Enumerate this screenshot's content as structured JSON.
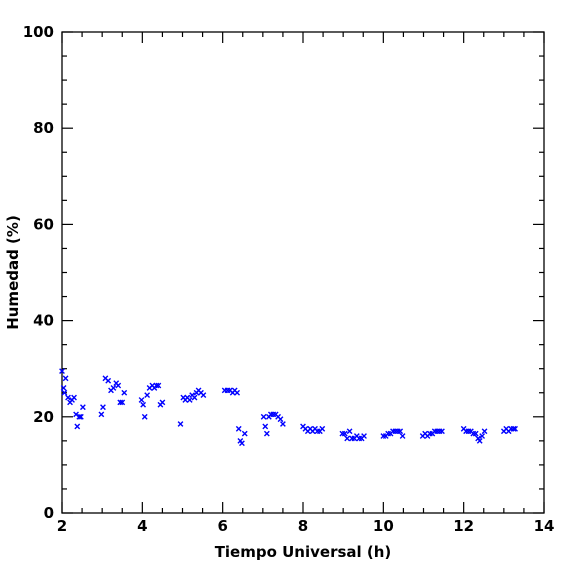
{
  "chart_data": {
    "type": "scatter",
    "title": "",
    "xlabel": "Tiempo Universal (h)",
    "ylabel": "Humedad (%)",
    "xlim": [
      2,
      14
    ],
    "ylim": [
      0,
      100
    ],
    "x_ticks": [
      2,
      4,
      6,
      8,
      10,
      12,
      14
    ],
    "y_ticks": [
      0,
      20,
      40,
      60,
      80,
      100
    ],
    "marker": "x",
    "marker_color": "#0000ff",
    "grid": false,
    "legend": "none",
    "series": [
      {
        "points": [
          [
            2.0,
            29.5
          ],
          [
            2.04,
            26.0
          ],
          [
            2.06,
            25.0
          ],
          [
            2.09,
            28.0
          ],
          [
            2.15,
            24.0
          ],
          [
            2.2,
            23.0
          ],
          [
            2.25,
            23.5
          ],
          [
            2.3,
            24.0
          ],
          [
            2.35,
            20.5
          ],
          [
            2.38,
            18.0
          ],
          [
            2.43,
            20.0
          ],
          [
            2.47,
            20.0
          ],
          [
            2.52,
            22.0
          ],
          [
            2.98,
            20.5
          ],
          [
            3.02,
            22.0
          ],
          [
            3.08,
            28.0
          ],
          [
            3.15,
            27.5
          ],
          [
            3.22,
            25.5
          ],
          [
            3.28,
            26.0
          ],
          [
            3.35,
            27.0
          ],
          [
            3.4,
            26.5
          ],
          [
            3.45,
            23.0
          ],
          [
            3.5,
            23.0
          ],
          [
            3.55,
            25.0
          ],
          [
            3.98,
            23.5
          ],
          [
            4.02,
            22.5
          ],
          [
            4.06,
            20.0
          ],
          [
            4.12,
            24.5
          ],
          [
            4.18,
            26.0
          ],
          [
            4.25,
            26.5
          ],
          [
            4.3,
            26.0
          ],
          [
            4.35,
            26.5
          ],
          [
            4.4,
            26.5
          ],
          [
            4.45,
            22.5
          ],
          [
            4.5,
            23.0
          ],
          [
            4.95,
            18.5
          ],
          [
            5.02,
            24.0
          ],
          [
            5.07,
            23.5
          ],
          [
            5.12,
            24.0
          ],
          [
            5.18,
            23.5
          ],
          [
            5.24,
            24.5
          ],
          [
            5.3,
            24.0
          ],
          [
            5.35,
            25.0
          ],
          [
            5.4,
            25.5
          ],
          [
            5.46,
            25.0
          ],
          [
            5.52,
            24.5
          ],
          [
            6.05,
            25.5
          ],
          [
            6.12,
            25.5
          ],
          [
            6.18,
            25.5
          ],
          [
            6.25,
            25.0
          ],
          [
            6.3,
            25.5
          ],
          [
            6.36,
            25.0
          ],
          [
            6.4,
            17.5
          ],
          [
            6.44,
            15.0
          ],
          [
            6.48,
            14.5
          ],
          [
            6.55,
            16.5
          ],
          [
            7.02,
            20.0
          ],
          [
            7.06,
            18.0
          ],
          [
            7.1,
            16.5
          ],
          [
            7.15,
            20.0
          ],
          [
            7.2,
            20.5
          ],
          [
            7.26,
            20.5
          ],
          [
            7.32,
            20.5
          ],
          [
            7.38,
            20.0
          ],
          [
            7.44,
            19.5
          ],
          [
            7.5,
            18.5
          ],
          [
            8.0,
            18.0
          ],
          [
            8.06,
            17.5
          ],
          [
            8.12,
            17.0
          ],
          [
            8.18,
            17.5
          ],
          [
            8.24,
            17.0
          ],
          [
            8.3,
            17.5
          ],
          [
            8.36,
            17.0
          ],
          [
            8.42,
            17.0
          ],
          [
            8.48,
            17.5
          ],
          [
            8.98,
            16.5
          ],
          [
            9.04,
            16.5
          ],
          [
            9.1,
            15.5
          ],
          [
            9.16,
            17.0
          ],
          [
            9.22,
            15.5
          ],
          [
            9.28,
            15.5
          ],
          [
            9.34,
            16.0
          ],
          [
            9.4,
            15.5
          ],
          [
            9.46,
            15.5
          ],
          [
            9.52,
            16.0
          ],
          [
            10.0,
            16.0
          ],
          [
            10.06,
            16.0
          ],
          [
            10.12,
            16.5
          ],
          [
            10.18,
            16.5
          ],
          [
            10.24,
            17.0
          ],
          [
            10.3,
            17.0
          ],
          [
            10.36,
            17.0
          ],
          [
            10.42,
            17.0
          ],
          [
            10.48,
            16.0
          ],
          [
            10.98,
            16.0
          ],
          [
            11.04,
            16.5
          ],
          [
            11.1,
            16.0
          ],
          [
            11.16,
            16.5
          ],
          [
            11.22,
            16.5
          ],
          [
            11.28,
            17.0
          ],
          [
            11.34,
            17.0
          ],
          [
            11.4,
            17.0
          ],
          [
            11.46,
            17.0
          ],
          [
            12.0,
            17.5
          ],
          [
            12.06,
            17.0
          ],
          [
            12.12,
            17.0
          ],
          [
            12.18,
            17.0
          ],
          [
            12.24,
            16.5
          ],
          [
            12.3,
            16.5
          ],
          [
            12.36,
            15.5
          ],
          [
            12.4,
            15.0
          ],
          [
            12.46,
            16.0
          ],
          [
            12.52,
            17.0
          ],
          [
            13.0,
            17.0
          ],
          [
            13.06,
            17.5
          ],
          [
            13.12,
            17.0
          ],
          [
            13.18,
            17.5
          ],
          [
            13.24,
            17.5
          ],
          [
            13.28,
            17.5
          ]
        ]
      }
    ]
  }
}
